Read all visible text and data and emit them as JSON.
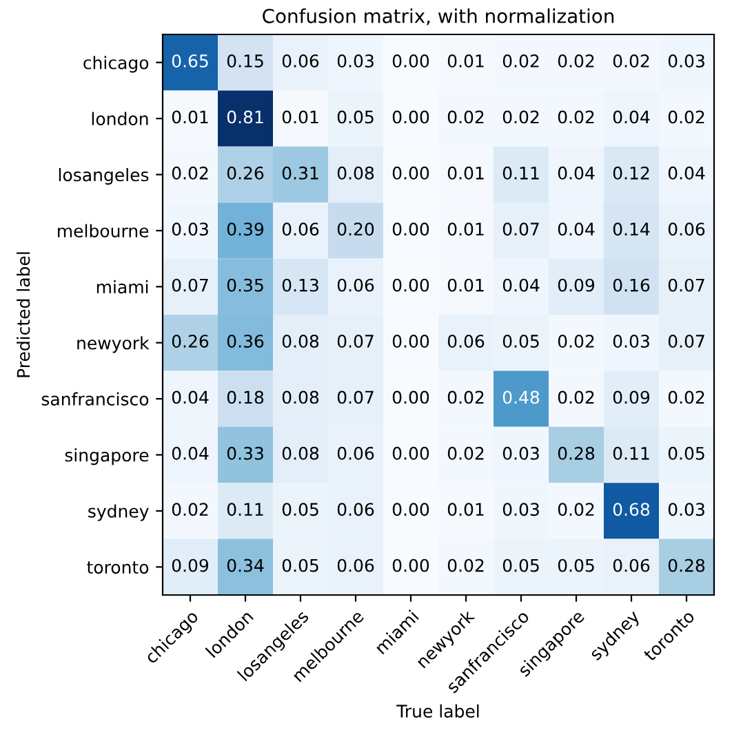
{
  "chart_data": {
    "type": "heatmap",
    "title": "Confusion matrix, with normalization",
    "xlabel": "True label",
    "ylabel": "Predicted label",
    "categories": [
      "chicago",
      "london",
      "losangeles",
      "melbourne",
      "miami",
      "newyork",
      "sanfrancisco",
      "singapore",
      "sydney",
      "toronto"
    ],
    "y_categories": [
      "chicago",
      "london",
      "losangeles",
      "melbourne",
      "miami",
      "newyork",
      "sanfrancisco",
      "singapore",
      "sydney",
      "toronto"
    ],
    "cells": [
      [
        0.65,
        0.15,
        0.06,
        0.03,
        0.0,
        0.01,
        0.02,
        0.02,
        0.02,
        0.03
      ],
      [
        0.01,
        0.81,
        0.01,
        0.05,
        0.0,
        0.02,
        0.02,
        0.02,
        0.04,
        0.02
      ],
      [
        0.02,
        0.26,
        0.31,
        0.08,
        0.0,
        0.01,
        0.11,
        0.04,
        0.12,
        0.04
      ],
      [
        0.03,
        0.39,
        0.06,
        0.2,
        0.0,
        0.01,
        0.07,
        0.04,
        0.14,
        0.06
      ],
      [
        0.07,
        0.35,
        0.13,
        0.06,
        0.0,
        0.01,
        0.04,
        0.09,
        0.16,
        0.07
      ],
      [
        0.26,
        0.36,
        0.08,
        0.07,
        0.0,
        0.06,
        0.05,
        0.02,
        0.03,
        0.07
      ],
      [
        0.04,
        0.18,
        0.08,
        0.07,
        0.0,
        0.02,
        0.48,
        0.02,
        0.09,
        0.02
      ],
      [
        0.04,
        0.33,
        0.08,
        0.06,
        0.0,
        0.02,
        0.03,
        0.28,
        0.11,
        0.05
      ],
      [
        0.02,
        0.11,
        0.05,
        0.06,
        0.0,
        0.01,
        0.03,
        0.02,
        0.68,
        0.03
      ],
      [
        0.09,
        0.34,
        0.05,
        0.06,
        0.0,
        0.02,
        0.05,
        0.05,
        0.06,
        0.28
      ]
    ],
    "cell_labels": [
      [
        "0.65",
        "0.15",
        "0.06",
        "0.03",
        "0.00",
        "0.01",
        "0.02",
        "0.02",
        "0.02",
        "0.03"
      ],
      [
        "0.01",
        "0.81",
        "0.01",
        "0.05",
        "0.00",
        "0.02",
        "0.02",
        "0.02",
        "0.04",
        "0.02"
      ],
      [
        "0.02",
        "0.26",
        "0.31",
        "0.08",
        "0.00",
        "0.01",
        "0.11",
        "0.04",
        "0.12",
        "0.04"
      ],
      [
        "0.03",
        "0.39",
        "0.06",
        "0.20",
        "0.00",
        "0.01",
        "0.07",
        "0.04",
        "0.14",
        "0.06"
      ],
      [
        "0.07",
        "0.35",
        "0.13",
        "0.06",
        "0.00",
        "0.01",
        "0.04",
        "0.09",
        "0.16",
        "0.07"
      ],
      [
        "0.26",
        "0.36",
        "0.08",
        "0.07",
        "0.00",
        "0.06",
        "0.05",
        "0.02",
        "0.03",
        "0.07"
      ],
      [
        "0.04",
        "0.18",
        "0.08",
        "0.07",
        "0.00",
        "0.02",
        "0.48",
        "0.02",
        "0.09",
        "0.02"
      ],
      [
        "0.04",
        "0.33",
        "0.08",
        "0.06",
        "0.00",
        "0.02",
        "0.03",
        "0.28",
        "0.11",
        "0.05"
      ],
      [
        "0.02",
        "0.11",
        "0.05",
        "0.06",
        "0.00",
        "0.01",
        "0.03",
        "0.02",
        "0.68",
        "0.03"
      ],
      [
        "0.09",
        "0.34",
        "0.05",
        "0.06",
        "0.00",
        "0.02",
        "0.05",
        "0.05",
        "0.06",
        "0.28"
      ]
    ]
  }
}
